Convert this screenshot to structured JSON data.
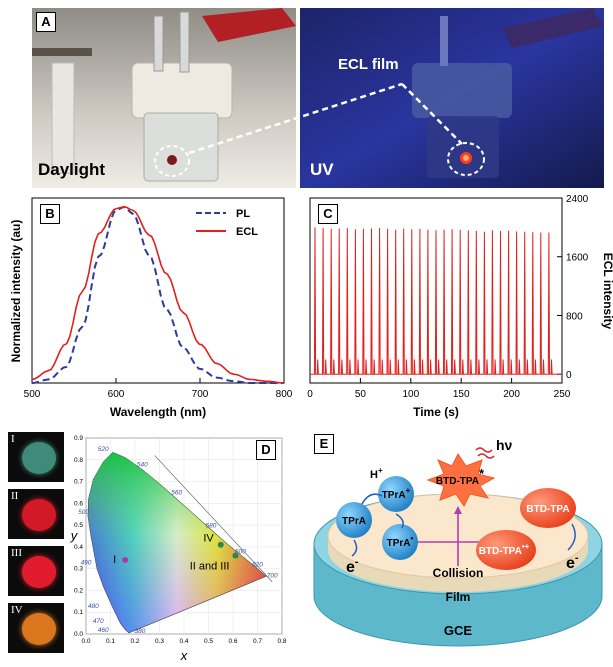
{
  "figure": {
    "panelA": {
      "letter": "A",
      "left_label": "Daylight",
      "right_label": "UV",
      "annotation": "ECL film"
    },
    "panelB": {
      "letter": "B",
      "ylabel": "Normalized intensity (au)",
      "xlabel": "Wavelength (nm)",
      "legend": [
        "PL",
        "ECL"
      ],
      "xticks": [
        "500",
        "600",
        "700",
        "800"
      ]
    },
    "panelC": {
      "letter": "C",
      "ylabel": "ECL intensity",
      "xlabel": "Time (s)",
      "xticks": [
        "0",
        "50",
        "100",
        "150",
        "200",
        "250"
      ],
      "yticks": [
        "0",
        "800",
        "1600",
        "2400"
      ]
    },
    "panelD": {
      "letter": "D",
      "thumbnails": [
        "I",
        "II",
        "III",
        "IV"
      ],
      "thumb_colors": [
        "#3f8a78",
        "#d11a26",
        "#e01c2c",
        "#d9761e"
      ],
      "xlabel": "x",
      "ylabel": "y",
      "xticks": [
        "0.0",
        "0.1",
        "0.2",
        "0.3",
        "0.4",
        "0.5",
        "0.6",
        "0.7",
        "0.8"
      ],
      "yticks": [
        "0.0",
        "0.1",
        "0.2",
        "0.3",
        "0.4",
        "0.5",
        "0.6",
        "0.7",
        "0.8",
        "0.9"
      ],
      "wavelength_labels": [
        "520",
        "540",
        "560",
        "580",
        "600",
        "620",
        "700",
        "500",
        "490",
        "480",
        "470",
        "460",
        "380"
      ],
      "points": [
        {
          "label": "I",
          "x": 0.16,
          "y": 0.34,
          "color": "#a63aa6"
        },
        {
          "label": "IV",
          "x": 0.55,
          "y": 0.41,
          "color": "#2a8a4a"
        },
        {
          "label": "II and III",
          "x": 0.61,
          "y": 0.36,
          "color": "#2a8a4a"
        }
      ]
    },
    "panelE": {
      "letter": "E",
      "hv": "hν",
      "excited": "BTD-TPA",
      "excited_sup": "*",
      "h_plus": "H",
      "h_sup": "+",
      "tpra1": "TPrA",
      "tpra2": "TPrA",
      "tpra2_sup": "+",
      "tpra3": "TPrA",
      "tpra3_sup": "•",
      "btd1": "BTD-TPA",
      "btd2": "BTD-TPA",
      "btd2_sup": "•+",
      "electron": "e",
      "electron_sup": "-",
      "collision": "Collision",
      "film": "Film",
      "gce": "GCE"
    }
  },
  "chart_data": [
    {
      "type": "line",
      "panel": "B",
      "xlabel": "Wavelength (nm)",
      "ylabel": "Normalized intensity (au)",
      "xlim": [
        500,
        800
      ],
      "ylim": [
        0,
        1.05
      ],
      "series": [
        {
          "name": "PL",
          "x": [
            500,
            520,
            540,
            560,
            580,
            600,
            610,
            620,
            640,
            660,
            680,
            700,
            720,
            740,
            760,
            780,
            800
          ],
          "y": [
            0.0,
            0.02,
            0.09,
            0.32,
            0.72,
            0.98,
            1.0,
            0.96,
            0.72,
            0.42,
            0.2,
            0.08,
            0.03,
            0.01,
            0.0,
            0.0,
            0.0
          ]
        },
        {
          "name": "ECL",
          "x": [
            500,
            520,
            540,
            560,
            580,
            600,
            610,
            620,
            640,
            660,
            680,
            700,
            720,
            740,
            760,
            780,
            800
          ],
          "y": [
            0.02,
            0.07,
            0.22,
            0.52,
            0.85,
            0.99,
            1.0,
            0.98,
            0.84,
            0.62,
            0.4,
            0.22,
            0.11,
            0.05,
            0.02,
            0.01,
            0.0
          ]
        }
      ]
    },
    {
      "type": "line",
      "panel": "C",
      "xlabel": "Time (s)",
      "ylabel": "ECL intensity",
      "xlim": [
        0,
        250
      ],
      "ylim": [
        -120,
        2400
      ],
      "pulse_count": 30,
      "pulse_period_s": 8,
      "first_pulse_s": 5,
      "peak_values": [
        2000,
        1990,
        1980,
        1985,
        1990,
        1975,
        1980,
        1985,
        1990,
        1980,
        1970,
        1985,
        1975,
        1980,
        1970,
        1960,
        1970,
        1975,
        1965,
        1960,
        1955,
        1940,
        1960,
        1950,
        1955,
        1945,
        1940,
        1935,
        1930,
        1930
      ],
      "secondary_peak": 200
    }
  ]
}
